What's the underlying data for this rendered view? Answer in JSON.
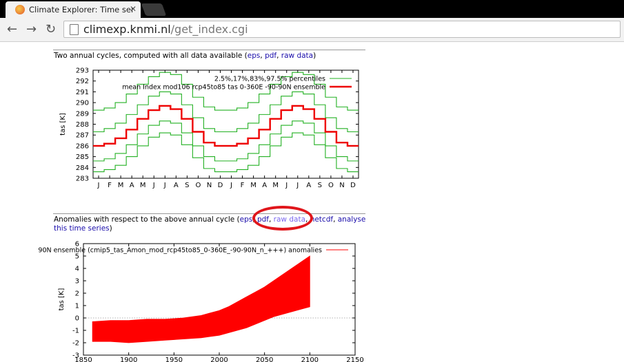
{
  "browser": {
    "tab_title": "Climate Explorer: Time ser",
    "url_host": "climexp.knmi.nl",
    "url_path": "/get_index.cgi",
    "back_glyph": "←",
    "forward_glyph": "→",
    "reload_glyph": "↻",
    "close_glyph": "✕"
  },
  "section1": {
    "caption_prefix": "Two annual cycles, computed with all data available (",
    "links": [
      "eps",
      "pdf",
      "raw data"
    ],
    "caption_suffix": ")"
  },
  "section2": {
    "caption_line1_prefix": "Anomalies with respect to the above annual cycle (",
    "links": [
      "eps",
      "pdf",
      "raw data",
      "netcdf",
      "analyse"
    ],
    "caption_line2": "this time series",
    "caption_suffix": ")"
  },
  "chart_data": [
    {
      "type": "line",
      "ylabel": "tas [K]",
      "xlabel": "",
      "ylim": [
        283,
        293
      ],
      "yticks": [
        283,
        284,
        285,
        286,
        287,
        288,
        289,
        290,
        291,
        292,
        293
      ],
      "categories": [
        "J",
        "F",
        "M",
        "A",
        "M",
        "J",
        "J",
        "A",
        "S",
        "O",
        "N",
        "D",
        "J",
        "F",
        "M",
        "A",
        "M",
        "J",
        "J",
        "A",
        "S",
        "O",
        "N",
        "D"
      ],
      "legend_placement": "top-right",
      "series": [
        {
          "name": "2.5%,17%,83%,97.5% percentiles",
          "role": "p97.5",
          "color": "#22b022",
          "values": [
            289.3,
            289.5,
            290.0,
            290.8,
            291.7,
            292.4,
            292.8,
            292.6,
            291.7,
            290.5,
            289.6,
            289.3,
            289.3,
            289.5,
            290.0,
            290.8,
            291.7,
            292.4,
            292.8,
            292.6,
            291.7,
            290.5,
            289.6,
            289.3
          ]
        },
        {
          "name": "",
          "role": "p83",
          "color": "#22b022",
          "values": [
            287.3,
            287.6,
            288.1,
            288.9,
            289.8,
            290.6,
            291.0,
            290.8,
            289.8,
            288.6,
            287.6,
            287.3,
            287.3,
            287.6,
            288.1,
            288.9,
            289.8,
            290.6,
            291.0,
            290.8,
            289.8,
            288.6,
            287.6,
            287.3
          ]
        },
        {
          "name": "",
          "role": "p17",
          "color": "#22b022",
          "values": [
            284.6,
            284.8,
            285.3,
            286.1,
            287.1,
            287.9,
            288.3,
            288.1,
            287.2,
            286.0,
            285.0,
            284.6,
            284.6,
            284.8,
            285.3,
            286.1,
            287.1,
            287.9,
            288.3,
            288.1,
            287.2,
            286.0,
            285.0,
            284.6
          ]
        },
        {
          "name": "",
          "role": "p2.5",
          "color": "#22b022",
          "values": [
            283.6,
            283.8,
            284.2,
            285.0,
            286.0,
            286.8,
            287.2,
            287.0,
            286.1,
            284.9,
            283.9,
            283.6,
            283.6,
            283.8,
            284.2,
            285.0,
            286.0,
            286.8,
            287.2,
            287.0,
            286.1,
            284.9,
            283.9,
            283.6
          ]
        },
        {
          "name": "mean Index mod106 rcp45to85 tas 0-360E -90-90N ensemble",
          "role": "mean",
          "color": "#ee0000",
          "values": [
            286.0,
            286.2,
            286.7,
            287.5,
            288.5,
            289.3,
            289.7,
            289.4,
            288.5,
            287.3,
            286.3,
            286.0,
            286.0,
            286.2,
            286.7,
            287.5,
            288.5,
            289.3,
            289.7,
            289.4,
            288.5,
            287.3,
            286.3,
            286.0
          ]
        }
      ]
    },
    {
      "type": "line",
      "ylabel": "tas [K]",
      "xlabel": "",
      "xlim": [
        1850,
        2150
      ],
      "xticks": [
        1850,
        1900,
        1950,
        2000,
        2050,
        2100,
        2150
      ],
      "ylim": [
        -3,
        6
      ],
      "yticks": [
        -3,
        -2,
        -1,
        0,
        1,
        2,
        3,
        4,
        5,
        6
      ],
      "legend_placement": "top-right",
      "series": [
        {
          "name": "90N ensemble (cmip5_tas_Amon_mod_rcp45to85_0-360E_-90-90N_n_+++) anomalies",
          "color": "#ff0000",
          "envelope": {
            "x": [
              1860,
              1880,
              1900,
              1920,
              1940,
              1960,
              1980,
              1990,
              2000,
              2010,
              2020,
              2030,
              2040,
              2050,
              2060,
              2070,
              2080,
              2090,
              2100
            ],
            "upper": [
              -0.3,
              -0.2,
              -0.2,
              -0.1,
              -0.1,
              0.0,
              0.2,
              0.4,
              0.6,
              0.9,
              1.3,
              1.7,
              2.1,
              2.5,
              3.0,
              3.5,
              4.0,
              4.5,
              5.0
            ],
            "lower": [
              -1.9,
              -1.9,
              -2.0,
              -1.9,
              -1.8,
              -1.7,
              -1.6,
              -1.5,
              -1.4,
              -1.2,
              -1.0,
              -0.8,
              -0.5,
              -0.2,
              0.1,
              0.3,
              0.5,
              0.7,
              0.9
            ]
          }
        }
      ]
    }
  ]
}
